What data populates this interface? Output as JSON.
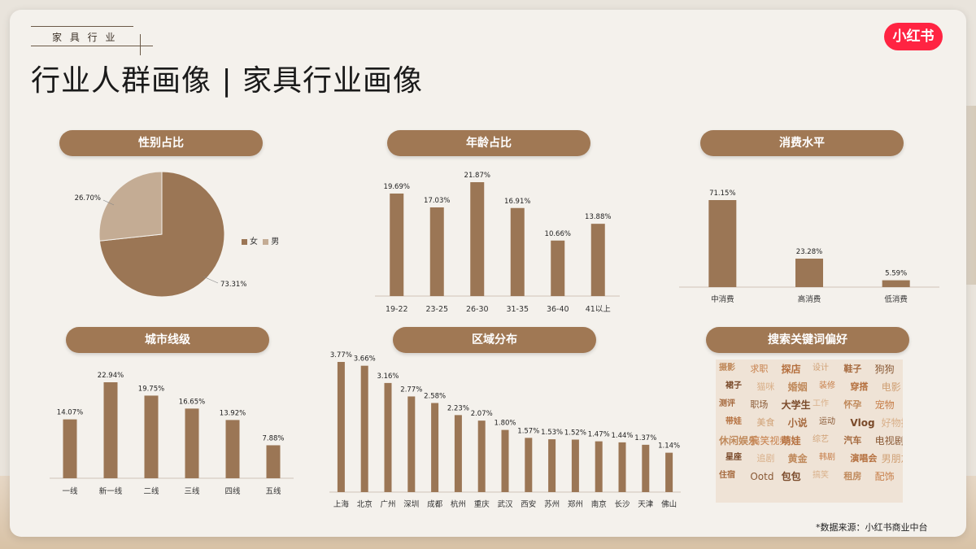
{
  "header": {
    "kicker": "家 具 行 业",
    "title": "行业人群画像 | 家具行业画像",
    "logo": "小红书"
  },
  "source_note": "*数据来源：小红书商业中台",
  "colors": {
    "bar": "#9b7655",
    "pie_main": "#9b7655",
    "pie_second": "#c4ac94",
    "pill": "#a07854",
    "axis": "#cfc4b8"
  },
  "sections": {
    "gender": "性别占比",
    "age": "年龄占比",
    "consumption": "消费水平",
    "city_tier": "城市线级",
    "region": "区域分布",
    "keywords": "搜索关键词偏好"
  },
  "chart_data": [
    {
      "id": "gender",
      "type": "pie",
      "labels": [
        "女",
        "男"
      ],
      "values": [
        73.31,
        26.7
      ],
      "data_labels": [
        "73.31%",
        "26.70%"
      ],
      "legend": "right"
    },
    {
      "id": "age",
      "type": "bar",
      "categories": [
        "19-22",
        "23-25",
        "26-30",
        "31-35",
        "36-40",
        "41以上"
      ],
      "values": [
        19.69,
        17.03,
        21.87,
        16.91,
        10.66,
        13.88
      ],
      "data_labels": [
        "19.69%",
        "17.03%",
        "21.87%",
        "16.91%",
        "10.66%",
        "13.88%"
      ]
    },
    {
      "id": "consumption",
      "type": "bar",
      "categories": [
        "中消费",
        "高消费",
        "低消费"
      ],
      "values": [
        71.15,
        23.28,
        5.59
      ],
      "data_labels": [
        "71.15%",
        "23.28%",
        "5.59%"
      ]
    },
    {
      "id": "city_tier",
      "type": "bar",
      "categories": [
        "一线",
        "新一线",
        "二线",
        "三线",
        "四线",
        "五线"
      ],
      "values": [
        14.07,
        22.94,
        19.75,
        16.65,
        13.92,
        7.88
      ],
      "data_labels": [
        "14.07%",
        "22.94%",
        "19.75%",
        "16.65%",
        "13.92%",
        "7.88%"
      ]
    },
    {
      "id": "region",
      "type": "bar",
      "categories": [
        "上海",
        "北京",
        "广州",
        "深圳",
        "成都",
        "杭州",
        "重庆",
        "武汉",
        "西安",
        "苏州",
        "郑州",
        "南京",
        "长沙",
        "天津",
        "佛山"
      ],
      "values": [
        3.77,
        3.66,
        3.16,
        2.77,
        2.58,
        2.23,
        2.07,
        1.8,
        1.57,
        1.53,
        1.52,
        1.47,
        1.44,
        1.37,
        1.14
      ],
      "data_labels": [
        "3.77%",
        "3.66%",
        "3.16%",
        "2.77%",
        "2.58%",
        "2.23%",
        "2.07%",
        "1.80%",
        "1.57%",
        "1.53%",
        "1.52%",
        "1.47%",
        "1.44%",
        "1.37%",
        "1.14%"
      ]
    }
  ],
  "word_cloud": [
    "摄影",
    "求职",
    "探店",
    "设计",
    "鞋子",
    "狗狗",
    "裙子",
    "猫咪",
    "婚姻",
    "装修",
    "穿搭",
    "电影",
    "测评",
    "职场",
    "大学生",
    "工作",
    "怀孕",
    "宠物",
    "带娃",
    "美食",
    "小说",
    "运动",
    "Vlog",
    "好物推荐",
    "休闲娱乐",
    "搞笑视频",
    "萌娃",
    "综艺",
    "汽车",
    "电视剧",
    "星座",
    "追剧",
    "黄金",
    "韩剧",
    "演唱会",
    "男朋友",
    "住宿",
    "Ootd",
    "包包",
    "搞笑",
    "租房",
    "配饰"
  ]
}
